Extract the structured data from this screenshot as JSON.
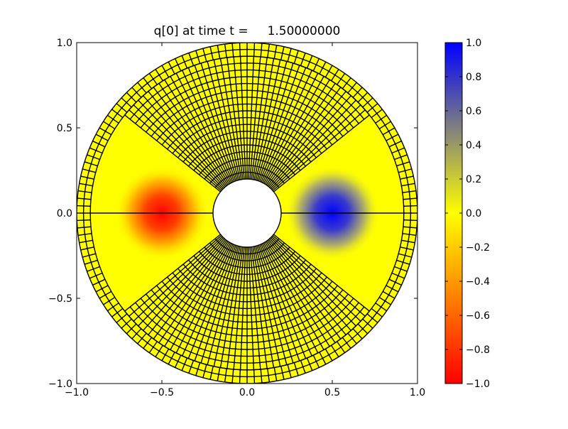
{
  "chart_data": {
    "type": "heatmap",
    "title": "q[0] at time t =     1.50000000",
    "xlim": [
      -1.0,
      1.0
    ],
    "ylim": [
      -1.0,
      1.0
    ],
    "xticks": [
      "−1.0",
      "−0.5",
      "0.0",
      "0.5",
      "1.0"
    ],
    "xtick_values": [
      -1.0,
      -0.5,
      0.0,
      0.5,
      1.0
    ],
    "yticks": [
      "−1.0",
      "−0.5",
      "0.0",
      "0.5",
      "1.0"
    ],
    "ytick_values": [
      -1.0,
      -0.5,
      0.0,
      0.5,
      1.0
    ],
    "domain": {
      "inner_radius": 0.2,
      "outer_radius": 1.0
    },
    "features": [
      {
        "name": "negative-pulse",
        "x": -0.5,
        "y": 0.0,
        "value": -1.0
      },
      {
        "name": "positive-pulse",
        "x": 0.5,
        "y": 0.0,
        "value": 1.0
      }
    ],
    "colorbar": {
      "range": [
        -1.0,
        1.0
      ],
      "colors": {
        "min": "#ff0000",
        "mid": "#ffff00",
        "max": "#0000ff"
      },
      "ticks": [
        "1.0",
        "0.8",
        "0.6",
        "0.4",
        "0.2",
        "0.0",
        "−0.2",
        "−0.4",
        "−0.6",
        "−0.8",
        "−1.0"
      ],
      "tick_values": [
        1.0,
        0.8,
        0.6,
        0.4,
        0.2,
        0.0,
        -0.2,
        -0.4,
        -0.6,
        -0.8,
        -1.0
      ]
    }
  }
}
